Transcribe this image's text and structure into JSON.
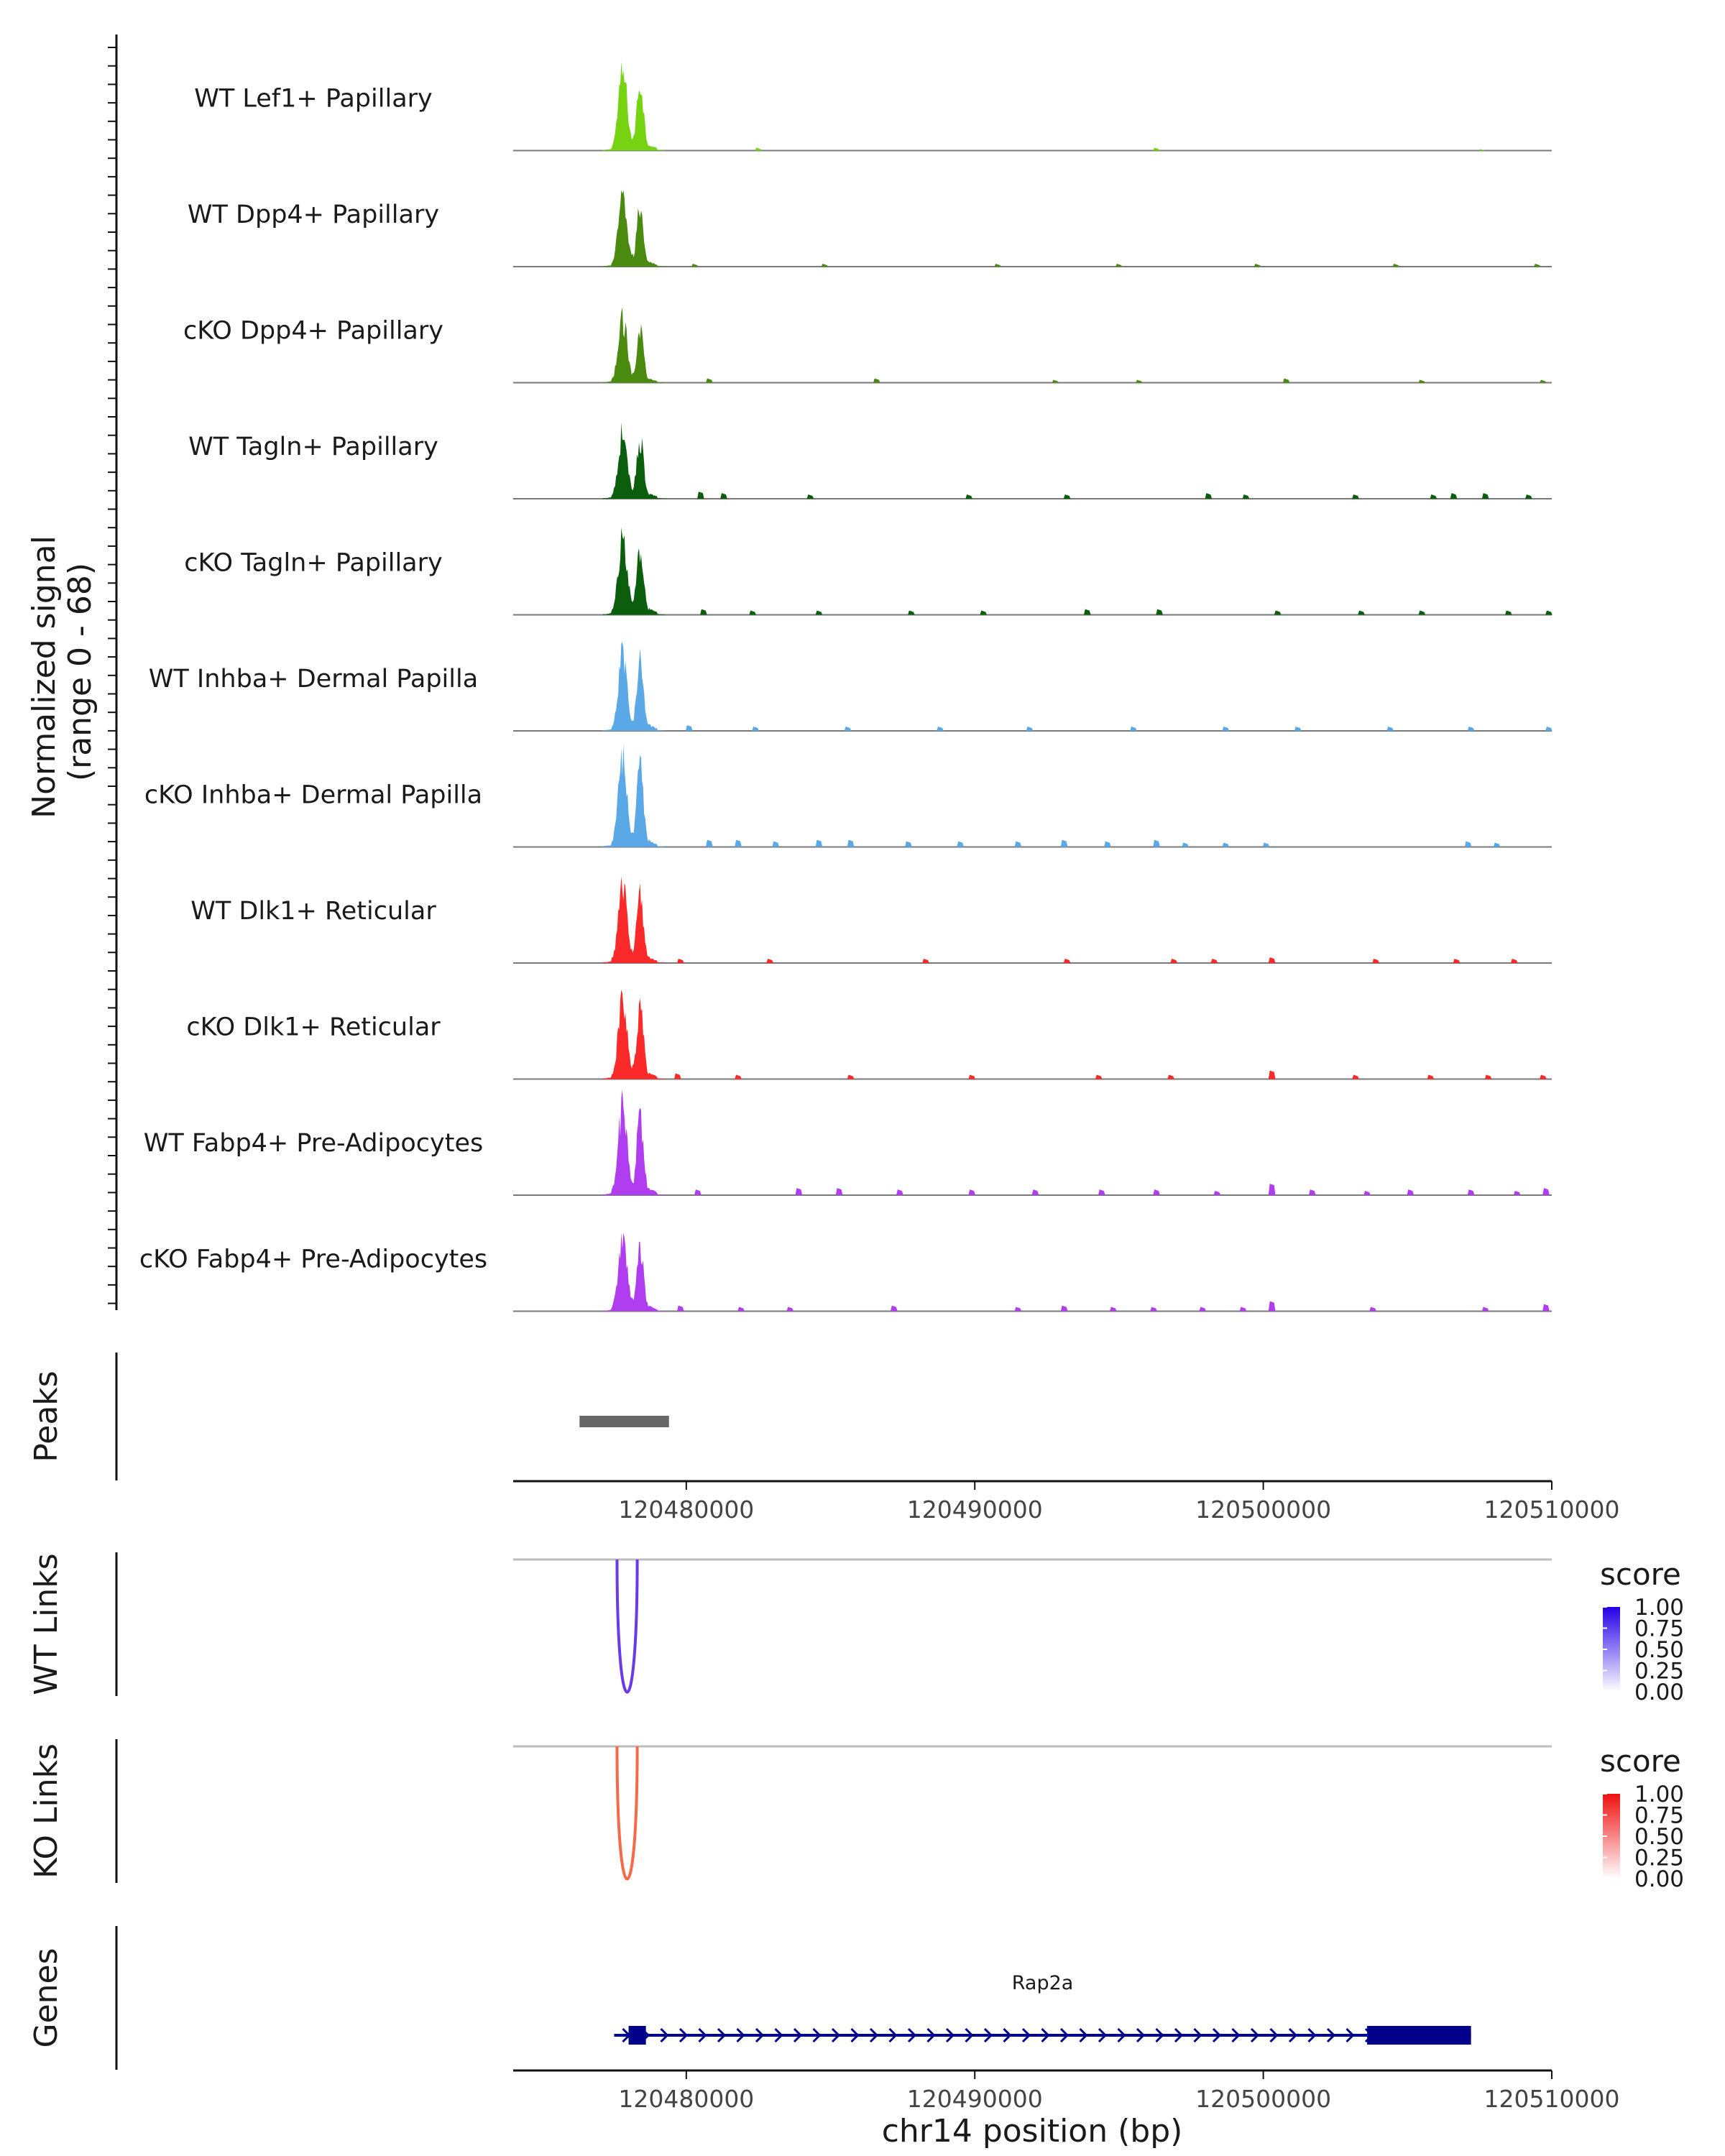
{
  "chart_data": {
    "type": "area",
    "chromosome": "chr14",
    "xlabel": "chr14 position (bp)",
    "xlim": [
      120474000,
      120510000
    ],
    "x_ticks": [
      120480000,
      120490000,
      120500000,
      120510000
    ],
    "coverage": {
      "ylabel_line1": "Normalized signal",
      "ylabel_line2": "(range 0 - 68)",
      "ylim": [
        0,
        68
      ],
      "main_peak": {
        "start": 120477100,
        "end": 120479300,
        "summits": [
          120477800,
          120478400
        ]
      },
      "series": [
        {
          "name": "WT Lef1+ Papillary",
          "color": "#76d311",
          "peak_max": 60,
          "minor_peaks": [
            [
              120482500,
              2
            ],
            [
              120496300,
              2
            ],
            [
              120507600,
              1
            ]
          ]
        },
        {
          "name": "WT Dpp4+ Papillary",
          "color": "#4a8a0f",
          "peak_max": 52,
          "minor_peaks": [
            [
              120480300,
              2
            ],
            [
              120484800,
              2
            ],
            [
              120490800,
              2
            ],
            [
              120495000,
              2
            ],
            [
              120499800,
              2
            ],
            [
              120504600,
              2
            ],
            [
              120509500,
              2
            ]
          ]
        },
        {
          "name": "cKO Dpp4+ Papillary",
          "color": "#4a8a0f",
          "peak_max": 48,
          "minor_peaks": [
            [
              120480800,
              3
            ],
            [
              120486600,
              3
            ],
            [
              120492800,
              2
            ],
            [
              120495700,
              2
            ],
            [
              120500800,
              3
            ],
            [
              120505500,
              2
            ],
            [
              120509700,
              2
            ]
          ]
        },
        {
          "name": "WT Tagln+ Papillary",
          "color": "#0b5e0b",
          "peak_max": 52,
          "minor_peaks": [
            [
              120480500,
              5
            ],
            [
              120481300,
              4
            ],
            [
              120484300,
              3
            ],
            [
              120489800,
              3
            ],
            [
              120493200,
              3
            ],
            [
              120498100,
              4
            ],
            [
              120499400,
              3
            ],
            [
              120503200,
              3
            ],
            [
              120505900,
              3
            ],
            [
              120506600,
              4
            ],
            [
              120507700,
              4
            ],
            [
              120509200,
              3
            ]
          ]
        },
        {
          "name": "cKO Tagln+ Papillary",
          "color": "#0b5e0b",
          "peak_max": 60,
          "minor_peaks": [
            [
              120480600,
              4
            ],
            [
              120482300,
              3
            ],
            [
              120484600,
              3
            ],
            [
              120487800,
              3
            ],
            [
              120490300,
              3
            ],
            [
              120493900,
              4
            ],
            [
              120496400,
              4
            ],
            [
              120500500,
              3
            ],
            [
              120503400,
              3
            ],
            [
              120505500,
              3
            ],
            [
              120508500,
              3
            ],
            [
              120509900,
              3
            ]
          ]
        },
        {
          "name": "WT Inhba+ Dermal Papilla",
          "color": "#5aa8e6",
          "peak_max": 60,
          "minor_peaks": [
            [
              120480100,
              4
            ],
            [
              120482400,
              3
            ],
            [
              120485600,
              3
            ],
            [
              120488800,
              3
            ],
            [
              120491900,
              3
            ],
            [
              120495500,
              3
            ],
            [
              120498700,
              3
            ],
            [
              120501200,
              3
            ],
            [
              120504400,
              3
            ],
            [
              120507200,
              3
            ],
            [
              120509900,
              3
            ]
          ]
        },
        {
          "name": "cKO Inhba+ Dermal Papilla",
          "color": "#5aa8e6",
          "peak_max": 68,
          "minor_peaks": [
            [
              120480800,
              5
            ],
            [
              120481800,
              5
            ],
            [
              120483100,
              4
            ],
            [
              120484600,
              5
            ],
            [
              120485700,
              5
            ],
            [
              120487700,
              4
            ],
            [
              120489500,
              4
            ],
            [
              120491500,
              4
            ],
            [
              120493100,
              5
            ],
            [
              120494600,
              4
            ],
            [
              120496300,
              5
            ],
            [
              120497300,
              3
            ],
            [
              120498700,
              3
            ],
            [
              120500100,
              3
            ],
            [
              120507100,
              4
            ],
            [
              120508100,
              3
            ]
          ]
        },
        {
          "name": "WT Dlk1+ Reticular",
          "color": "#fb2a2a",
          "peak_max": 60,
          "minor_peaks": [
            [
              120479800,
              3
            ],
            [
              120482900,
              3
            ],
            [
              120488300,
              3
            ],
            [
              120493200,
              3
            ],
            [
              120496900,
              3
            ],
            [
              120498300,
              3
            ],
            [
              120500300,
              4
            ],
            [
              120503900,
              3
            ],
            [
              120506700,
              3
            ],
            [
              120508700,
              3
            ]
          ]
        },
        {
          "name": "cKO Dlk1+ Reticular",
          "color": "#fb2a2a",
          "peak_max": 62,
          "minor_peaks": [
            [
              120479700,
              4
            ],
            [
              120481800,
              3
            ],
            [
              120485700,
              3
            ],
            [
              120489900,
              3
            ],
            [
              120494300,
              3
            ],
            [
              120496800,
              3
            ],
            [
              120500300,
              6
            ],
            [
              120503200,
              3
            ],
            [
              120505800,
              3
            ],
            [
              120507800,
              3
            ],
            [
              120509700,
              3
            ]
          ]
        },
        {
          "name": "WT Fabp4+ Pre-Adipocytes",
          "color": "#b03ef0",
          "peak_max": 68,
          "minor_peaks": [
            [
              120480400,
              4
            ],
            [
              120483900,
              5
            ],
            [
              120485300,
              5
            ],
            [
              120487400,
              4
            ],
            [
              120489900,
              4
            ],
            [
              120492100,
              4
            ],
            [
              120494400,
              4
            ],
            [
              120496300,
              4
            ],
            [
              120498400,
              3
            ],
            [
              120500300,
              8
            ],
            [
              120501700,
              4
            ],
            [
              120503600,
              3
            ],
            [
              120505100,
              4
            ],
            [
              120507200,
              4
            ],
            [
              120508800,
              3
            ],
            [
              120509800,
              5
            ]
          ]
        },
        {
          "name": "cKO Fabp4+ Pre-Adipocytes",
          "color": "#b03ef0",
          "peak_max": 55,
          "minor_peaks": [
            [
              120479800,
              4
            ],
            [
              120481900,
              3
            ],
            [
              120483600,
              3
            ],
            [
              120487200,
              4
            ],
            [
              120491500,
              3
            ],
            [
              120493100,
              4
            ],
            [
              120494800,
              3
            ],
            [
              120496200,
              3
            ],
            [
              120497900,
              3
            ],
            [
              120499300,
              3
            ],
            [
              120500300,
              7
            ],
            [
              120503800,
              3
            ],
            [
              120507700,
              3
            ],
            [
              120509800,
              5
            ]
          ]
        }
      ]
    },
    "peaks": {
      "label": "Peaks",
      "color": "#666666",
      "regions": [
        {
          "start": 120476300,
          "end": 120479400
        }
      ]
    },
    "links": [
      {
        "label": "WT Links",
        "color": "#6a3ae6",
        "score": 0.8,
        "start": 120477600,
        "end": 120478300,
        "legend": {
          "title": "score",
          "ticks": [
            "1.00",
            "0.75",
            "0.50",
            "0.25",
            "0.00"
          ],
          "colors": [
            "#ffffff",
            "#2200e6"
          ]
        }
      },
      {
        "label": "KO Links",
        "color": "#f56a48",
        "score": 0.8,
        "start": 120477600,
        "end": 120478300,
        "legend": {
          "title": "score",
          "ticks": [
            "1.00",
            "0.75",
            "0.50",
            "0.25",
            "0.00"
          ],
          "colors": [
            "#ffffff",
            "#f01010"
          ]
        }
      }
    ],
    "genes": {
      "label": "Genes",
      "color": "#00008b",
      "items": [
        {
          "name": "Rap2a",
          "strand": "+",
          "start": 120477500,
          "end": 120507200,
          "exons": [
            [
              120478000,
              120478600
            ],
            [
              120503600,
              120507200
            ]
          ]
        }
      ]
    }
  }
}
